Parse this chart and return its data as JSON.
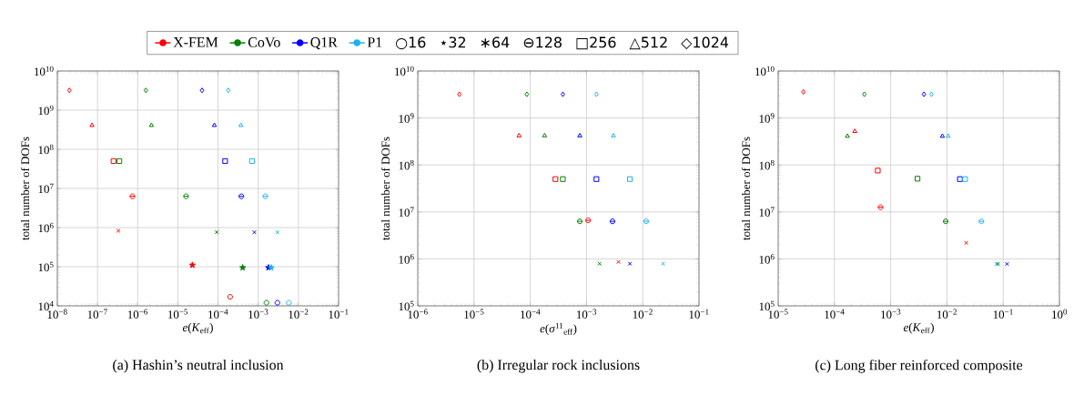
{
  "chart_data": [
    {
      "type": "scatter",
      "annotations": [
        "(a) Hashin’s neutral inclusion",
        "○16",
        "⋆32",
        "∗64",
        "⊖128",
        "□256",
        "△512",
        "◇1024"
      ],
      "xlabel": "*e*(*K*$_{eff}$)",
      "ylabel": "total number of DOFs",
      "log": "xy",
      "grid": true,
      "legend": "top",
      "xlim": [
        1e-08,
        0.1
      ],
      "ylim": [
        10000,
        10000000000
      ],
      "xticks": [
        {
          "value": 1e-08,
          "label": "10$^{−8}$"
        },
        {
          "value": 1e-07,
          "label": "10$^{−7}$"
        },
        {
          "value": 1e-06,
          "label": "10$^{−6}$"
        },
        {
          "value": 1e-05,
          "label": "10$^{−5}$"
        },
        {
          "value": 0.0001,
          "label": "10$^{−4}$"
        },
        {
          "value": 0.001,
          "label": "10$^{−3}$"
        },
        {
          "value": 0.01,
          "label": "10$^{−2}$"
        },
        {
          "value": 0.1,
          "label": "10$^{−1}$"
        }
      ],
      "yticks": [
        {
          "value": 10000,
          "label": "10$^{4}$"
        },
        {
          "value": 100000,
          "label": "10$^{5}$"
        },
        {
          "value": 1000000,
          "label": "10$^{6}$"
        },
        {
          "value": 10000000,
          "label": "10$^{7}$"
        },
        {
          "value": 100000000,
          "label": "10$^{8}$"
        },
        {
          "value": 1000000000,
          "label": "10$^{9}$"
        },
        {
          "value": 10000000000,
          "label": "10$^{10}$"
        }
      ],
      "series": [
        {
          "name": "X-FEM",
          "type": "line",
          "marker": "circle",
          "color": "#ff0000"
        },
        {
          "name": "CoVo",
          "type": "line",
          "marker": "circle",
          "color": "#008000"
        },
        {
          "name": "Q1R",
          "type": "line",
          "marker": "circle",
          "color": "#0000ff"
        },
        {
          "name": "P1",
          "type": "line",
          "marker": "circle",
          "color": "#1eb0ee"
        },
        {
          "marker": "circle",
          "x": [
            0.0002,
            0.0016,
            0.003,
            0.0058
          ],
          "values": [
            17000,
            12000,
            12000,
            12000
          ],
          "colors": [
            "#ff0000",
            "#008000",
            "#0000ff",
            "#1eb0ee"
          ]
        },
        {
          "marker": "star",
          "x": [
            2.3e-05,
            0.00041,
            0.0018,
            0.0021
          ],
          "values": [
            110000,
            95000,
            95000,
            95000
          ],
          "colors": [
            "#ff0000",
            "#008000",
            "#0000ff",
            "#1eb0ee"
          ]
        },
        {
          "marker": "cross",
          "x": [
            3.3e-07,
            9.3e-05,
            0.0008,
            0.003
          ],
          "values": [
            830000,
            760000,
            760000,
            760000
          ],
          "colors": [
            "#ff0000",
            "#008000",
            "#0000ff",
            "#1eb0ee"
          ]
        },
        {
          "marker": "circle-minus",
          "x": [
            7.4e-07,
            1.6e-05,
            0.00038,
            0.0015
          ],
          "values": [
            6300000,
            6300000,
            6300000,
            6300000
          ],
          "colors": [
            "#ff0000",
            "#008000",
            "#0000ff",
            "#1eb0ee"
          ]
        },
        {
          "marker": "square",
          "x": [
            2.5e-07,
            3.5e-07,
            0.00015,
            0.0007
          ],
          "values": [
            50000000,
            50000000,
            50000000,
            50000000
          ],
          "colors": [
            "#ff0000",
            "#008000",
            "#0000ff",
            "#1eb0ee"
          ]
        },
        {
          "marker": "triangle",
          "x": [
            7.3e-08,
            2.2e-06,
            8.1e-05,
            0.00037
          ],
          "values": [
            410000000,
            410000000,
            410000000,
            410000000
          ],
          "colors": [
            "#ff0000",
            "#008000",
            "#0000ff",
            "#1eb0ee"
          ]
        },
        {
          "marker": "diamond",
          "x": [
            2e-08,
            1.6e-06,
            4e-05,
            0.00018
          ],
          "values": [
            3200000000,
            3200000000,
            3200000000,
            3200000000
          ],
          "colors": [
            "#ff0000",
            "#008000",
            "#0000ff",
            "#1eb0ee"
          ]
        }
      ]
    },
    {
      "type": "scatter",
      "annotations": [
        "(b) Irregular rock inclusions"
      ],
      "xlabel": "*e*(*σ*$^{11}$$_{eff}$)",
      "ylabel": "total number of DOFs",
      "log": "xy",
      "grid": true,
      "xlim": [
        1e-06,
        0.1
      ],
      "ylim": [
        100000,
        10000000000
      ],
      "xticks": [
        {
          "value": 1e-06,
          "label": "10$^{−6}$"
        },
        {
          "value": 1e-05,
          "label": "10$^{−5}$"
        },
        {
          "value": 0.0001,
          "label": "10$^{−4}$"
        },
        {
          "value": 0.001,
          "label": "10$^{−3}$"
        },
        {
          "value": 0.01,
          "label": "10$^{−2}$"
        },
        {
          "value": 0.1,
          "label": "10$^{−1}$"
        }
      ],
      "yticks": [
        {
          "value": 100000,
          "label": "10$^{5}$"
        },
        {
          "value": 1000000,
          "label": "10$^{6}$"
        },
        {
          "value": 10000000,
          "label": "10$^{7}$"
        },
        {
          "value": 100000000,
          "label": "10$^{8}$"
        },
        {
          "value": 1000000000,
          "label": "10$^{9}$"
        },
        {
          "value": 10000000000,
          "label": "10$^{10}$"
        }
      ],
      "series": [
        {
          "marker": "cross",
          "x": [
            0.0037,
            0.0017,
            0.0059,
            0.023
          ],
          "values": [
            860000,
            790000,
            790000,
            790000
          ],
          "colors": [
            "#ff0000",
            "#008000",
            "#0000ff",
            "#1eb0ee"
          ]
        },
        {
          "marker": "circle-minus",
          "x": [
            0.00107,
            0.00076,
            0.0029,
            0.0115
          ],
          "values": [
            6600000,
            6300000,
            6300000,
            6300000
          ],
          "colors": [
            "#ff0000",
            "#008000",
            "#0000ff",
            "#1eb0ee"
          ]
        },
        {
          "marker": "square",
          "x": [
            0.00028,
            0.00038,
            0.0015,
            0.0059
          ],
          "values": [
            50000000,
            50000000,
            50000000,
            50000000
          ],
          "colors": [
            "#ff0000",
            "#008000",
            "#0000ff",
            "#1eb0ee"
          ]
        },
        {
          "marker": "triangle",
          "x": [
            6.3e-05,
            0.00018,
            0.00076,
            0.003
          ],
          "values": [
            420000000,
            420000000,
            420000000,
            420000000
          ],
          "colors": [
            "#ff0000",
            "#008000",
            "#0000ff",
            "#1eb0ee"
          ]
        },
        {
          "marker": "diamond",
          "x": [
            5.5e-06,
            8.7e-05,
            0.00038,
            0.0015
          ],
          "values": [
            3200000000,
            3200000000,
            3200000000,
            3200000000
          ],
          "colors": [
            "#ff0000",
            "#008000",
            "#0000ff",
            "#1eb0ee"
          ]
        }
      ]
    },
    {
      "type": "scatter",
      "annotations": [
        "(c) Long fiber reinforced composite"
      ],
      "xlabel": "*e*(*K*$_{eff}$)",
      "ylabel": "total number of DOFs",
      "log": "xy",
      "grid": true,
      "xlim": [
        1e-05,
        1
      ],
      "ylim": [
        100000,
        10000000000
      ],
      "xticks": [
        {
          "value": 1e-05,
          "label": "10$^{−5}$"
        },
        {
          "value": 0.0001,
          "label": "10$^{−4}$"
        },
        {
          "value": 0.001,
          "label": "10$^{−3}$"
        },
        {
          "value": 0.01,
          "label": "10$^{−2}$"
        },
        {
          "value": 0.1,
          "label": "10$^{−1}$"
        },
        {
          "value": 1,
          "label": "10$^{0}$"
        }
      ],
      "yticks": [
        {
          "value": 100000,
          "label": "10$^{5}$"
        },
        {
          "value": 1000000,
          "label": "10$^{6}$"
        },
        {
          "value": 10000000,
          "label": "10$^{7}$"
        },
        {
          "value": 100000000,
          "label": "10$^{8}$"
        },
        {
          "value": 1000000000,
          "label": "10$^{9}$"
        },
        {
          "value": 10000000000,
          "label": "10$^{10}$"
        }
      ],
      "series": [
        {
          "marker": "cross",
          "x": [
            0.022,
            0.081,
            0.117,
            0.076
          ],
          "values": [
            2200000,
            780000,
            780000,
            780000
          ],
          "colors": [
            "#ff0000",
            "#008000",
            "#0000ff",
            "#1eb0ee"
          ]
        },
        {
          "marker": "circle-minus",
          "x": [
            0.00066,
            0.0095,
            null,
            0.041
          ],
          "values": [
            12600000,
            6300000,
            null,
            6300000
          ],
          "colors": [
            "#ff0000",
            "#008000",
            "#0000ff",
            "#1eb0ee"
          ]
        },
        {
          "marker": "square",
          "x": [
            0.00059,
            0.003,
            0.017,
            0.021
          ],
          "values": [
            76000000,
            51000000,
            50000000,
            50000000
          ],
          "colors": [
            "#ff0000",
            "#008000",
            "#0000ff",
            "#1eb0ee"
          ]
        },
        {
          "marker": "triangle",
          "x": [
            0.00023,
            0.00017,
            0.0083,
            0.0105
          ],
          "values": [
            520000000,
            410000000,
            410000000,
            410000000
          ],
          "colors": [
            "#ff0000",
            "#008000",
            "#0000ff",
            "#1eb0ee"
          ]
        },
        {
          "marker": "diamond",
          "x": [
            2.8e-05,
            0.00034,
            0.0039,
            0.0053
          ],
          "values": [
            3600000000,
            3200000000,
            3200000000,
            3200000000
          ],
          "colors": [
            "#ff0000",
            "#008000",
            "#0000ff",
            "#1eb0ee"
          ]
        }
      ]
    }
  ]
}
